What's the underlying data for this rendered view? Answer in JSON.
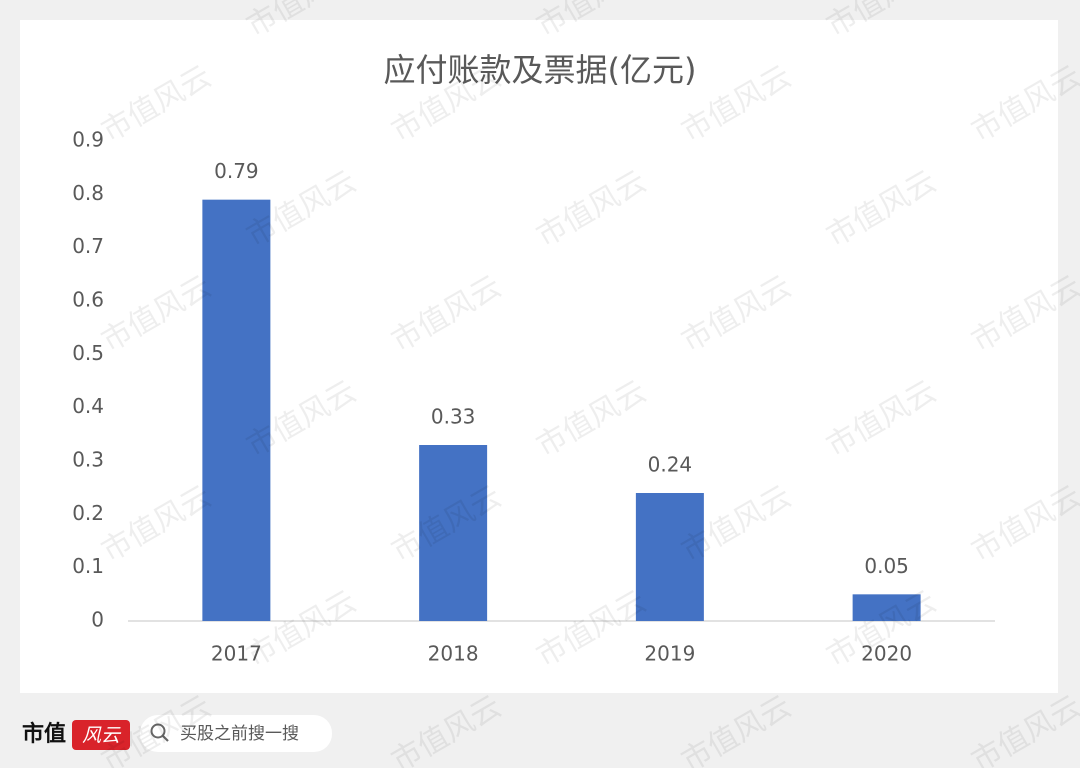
{
  "chart_data": {
    "type": "bar",
    "title": "应付账款及票据(亿元)",
    "categories": [
      "2017",
      "2018",
      "2019",
      "2020"
    ],
    "values": [
      0.79,
      0.33,
      0.24,
      0.05
    ],
    "color": "#4472c4",
    "ylim": [
      0,
      0.9
    ],
    "yticks": [
      0,
      0.1,
      0.2,
      0.3,
      0.4,
      0.5,
      0.6,
      0.7,
      0.8,
      0.9
    ],
    "grid": false
  },
  "footer": {
    "logo": "市值",
    "logo_badge": "风云",
    "search_placeholder": "买股之前搜一搜"
  },
  "watermark": "市值风云"
}
